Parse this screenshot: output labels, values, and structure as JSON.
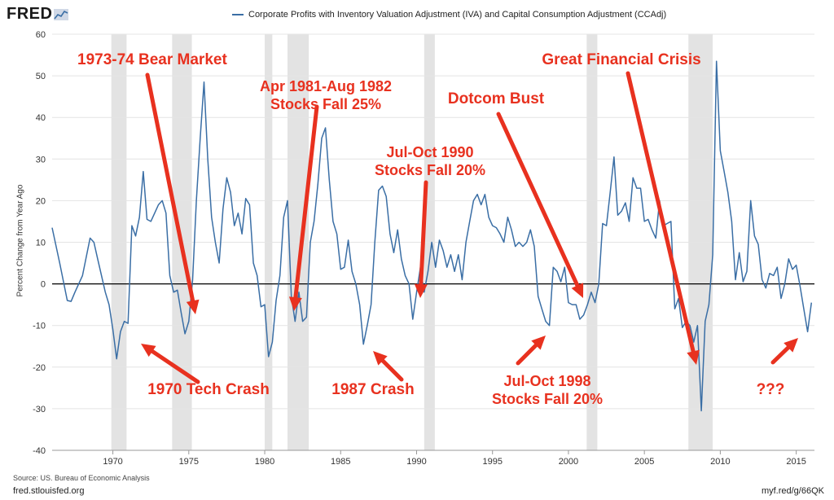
{
  "header": {
    "logo": "FRED",
    "legend_label": "Corporate Profits with Inventory Valuation Adjustment (IVA) and Capital Consumption Adjustment (CCAdj)"
  },
  "footer": {
    "source": "Source: US. Bureau of Economic Analysis",
    "site": "fred.stlouisfed.org",
    "short_url": "myf.red/g/66QK"
  },
  "colors": {
    "series": "#3a6ea5",
    "annotation": "#e8311f",
    "recession": "#e3e3e3"
  },
  "chart_data": {
    "type": "line",
    "title": "",
    "ylabel": "Percent Change from Year Ago",
    "xlabel": "",
    "ylim": [
      -40,
      60
    ],
    "xlim": [
      1966,
      2016.2
    ],
    "yticks": [
      -40,
      -30,
      -20,
      -10,
      0,
      10,
      20,
      30,
      40,
      50,
      60
    ],
    "xticks": [
      1970,
      1975,
      1980,
      1985,
      1990,
      1995,
      2000,
      2005,
      2010,
      2015
    ],
    "grid": true,
    "recessions": [
      [
        1969.9,
        1970.9
      ],
      [
        1973.9,
        1975.2
      ],
      [
        1980.0,
        1980.5
      ],
      [
        1981.5,
        1982.9
      ],
      [
        1990.5,
        1991.2
      ],
      [
        2001.2,
        2001.9
      ],
      [
        2007.9,
        2009.5
      ]
    ],
    "series": [
      {
        "name": "Corporate Profits with Inventory Valuation Adjustment (IVA) and Capital Consumption Adjustment (CCAdj)",
        "x": [
          1966.0,
          1966.5,
          1967.0,
          1967.25,
          1967.5,
          1968.0,
          1968.5,
          1968.75,
          1969.0,
          1969.5,
          1969.75,
          1970.0,
          1970.25,
          1970.5,
          1970.75,
          1971.0,
          1971.25,
          1971.5,
          1971.75,
          1972.0,
          1972.25,
          1972.5,
          1972.75,
          1973.0,
          1973.25,
          1973.5,
          1973.75,
          1974.0,
          1974.25,
          1974.5,
          1974.75,
          1975.0,
          1975.25,
          1975.5,
          1975.75,
          1976.0,
          1976.25,
          1976.5,
          1976.75,
          1977.0,
          1977.25,
          1977.5,
          1977.75,
          1978.0,
          1978.25,
          1978.5,
          1978.75,
          1979.0,
          1979.25,
          1979.5,
          1979.75,
          1980.0,
          1980.25,
          1980.5,
          1980.75,
          1981.0,
          1981.25,
          1981.5,
          1981.75,
          1982.0,
          1982.25,
          1982.5,
          1982.75,
          1983.0,
          1983.25,
          1983.5,
          1983.75,
          1984.0,
          1984.25,
          1984.5,
          1984.75,
          1985.0,
          1985.25,
          1985.5,
          1985.75,
          1986.0,
          1986.25,
          1986.5,
          1986.75,
          1987.0,
          1987.25,
          1987.5,
          1987.75,
          1988.0,
          1988.25,
          1988.5,
          1988.75,
          1989.0,
          1989.25,
          1989.5,
          1989.75,
          1990.0,
          1990.25,
          1990.5,
          1990.75,
          1991.0,
          1991.25,
          1991.5,
          1991.75,
          1992.0,
          1992.25,
          1992.5,
          1992.75,
          1993.0,
          1993.25,
          1993.5,
          1993.75,
          1994.0,
          1994.25,
          1994.5,
          1994.75,
          1995.0,
          1995.25,
          1995.5,
          1995.75,
          1996.0,
          1996.25,
          1996.5,
          1996.75,
          1997.0,
          1997.25,
          1997.5,
          1997.75,
          1998.0,
          1998.25,
          1998.5,
          1998.75,
          1999.0,
          1999.25,
          1999.5,
          1999.75,
          2000.0,
          2000.25,
          2000.5,
          2000.75,
          2001.0,
          2001.25,
          2001.5,
          2001.75,
          2002.0,
          2002.25,
          2002.5,
          2002.75,
          2003.0,
          2003.25,
          2003.5,
          2003.75,
          2004.0,
          2004.25,
          2004.5,
          2004.75,
          2005.0,
          2005.25,
          2005.5,
          2005.75,
          2006.0,
          2006.25,
          2006.5,
          2006.75,
          2007.0,
          2007.25,
          2007.5,
          2007.75,
          2008.0,
          2008.25,
          2008.5,
          2008.75,
          2009.0,
          2009.25,
          2009.5,
          2009.75,
          2010.0,
          2010.25,
          2010.5,
          2010.75,
          2011.0,
          2011.25,
          2011.5,
          2011.75,
          2012.0,
          2012.25,
          2012.5,
          2012.75,
          2013.0,
          2013.25,
          2013.5,
          2013.75,
          2014.0,
          2014.25,
          2014.5,
          2014.75,
          2015.0,
          2015.25,
          2015.5,
          2015.75,
          2016.0
        ],
        "values": [
          13.5,
          5,
          -4,
          -4.2,
          -2,
          2,
          11,
          10,
          6,
          -2,
          -5,
          -11,
          -18,
          -11.5,
          -9,
          -9.5,
          14,
          11.5,
          16,
          27,
          15.5,
          15,
          17,
          19,
          20,
          17,
          2,
          -2,
          -1.5,
          -7,
          -12,
          -9,
          1,
          20,
          35,
          48.5,
          30,
          16,
          10,
          5,
          18,
          25.5,
          22,
          14,
          17,
          12,
          20.5,
          19,
          5,
          2,
          -5.5,
          -5,
          -17.5,
          -14,
          -4,
          2,
          16,
          20,
          -3,
          -9,
          -2,
          -9,
          -8,
          10,
          15,
          24,
          35,
          37.5,
          25,
          15,
          12,
          3.5,
          4,
          10.5,
          3,
          0,
          -5,
          -14.5,
          -10,
          -5,
          10,
          22.5,
          23.5,
          21,
          12,
          7.5,
          13,
          6,
          2,
          0,
          -8.5,
          -2,
          4,
          -2,
          3,
          10,
          4,
          10.5,
          8,
          4,
          7,
          3,
          7,
          1,
          10,
          15,
          20,
          21.5,
          19,
          21.5,
          16,
          14,
          13.5,
          12,
          10,
          16,
          13,
          9,
          10,
          9,
          10,
          13,
          9,
          -3,
          -6,
          -9,
          -10,
          4,
          3,
          0.5,
          4,
          -4.5,
          -5,
          -5,
          -8.5,
          -7.5,
          -5,
          -2,
          -4.5,
          0,
          14.5,
          14,
          22,
          30.5,
          16.5,
          17.5,
          19.5,
          15,
          25.5,
          23,
          23,
          15,
          15.5,
          13,
          11,
          20,
          14,
          14.5,
          15,
          -6,
          -3.5,
          -10.5,
          -9,
          -10,
          -14,
          -10,
          -30.5,
          -9,
          -5,
          7,
          53.5,
          32,
          27,
          22,
          15,
          1,
          7.5,
          0.5,
          3,
          20,
          11.5,
          9.5,
          1,
          -1,
          2.5,
          2,
          4,
          -3.5,
          0,
          6,
          3.5,
          4.5,
          -0.5,
          -6,
          -11.5,
          -4.5
        ]
      }
    ]
  },
  "annotations": [
    {
      "lines": [
        "1973-74 Bear Market"
      ]
    },
    {
      "lines": [
        "Apr 1981-Aug 1982",
        "Stocks Fall 25%"
      ]
    },
    {
      "lines": [
        "Jul-Oct 1990",
        "Stocks Fall 20%"
      ]
    },
    {
      "lines": [
        "Dotcom Bust"
      ]
    },
    {
      "lines": [
        "Great Financial Crisis"
      ]
    },
    {
      "lines": [
        "1970 Tech Crash"
      ]
    },
    {
      "lines": [
        "1987 Crash"
      ]
    },
    {
      "lines": [
        "Jul-Oct 1998",
        "Stocks Fall 20%"
      ]
    },
    {
      "lines": [
        "???"
      ]
    }
  ]
}
